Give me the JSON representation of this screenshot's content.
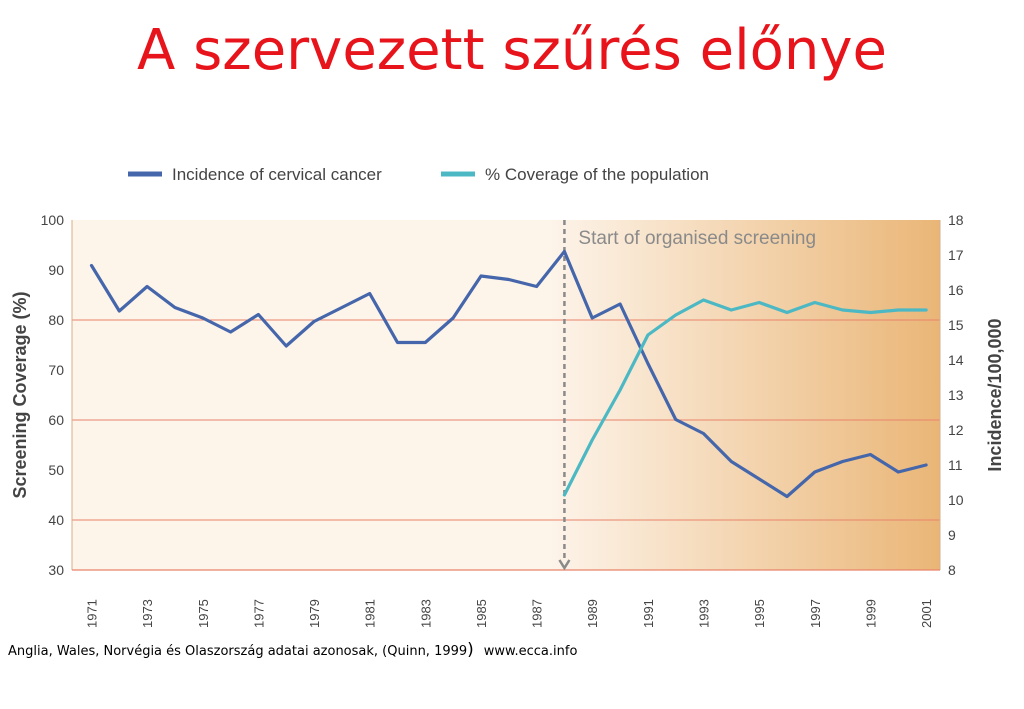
{
  "title": "A szervezett szűrés előnye",
  "footer": {
    "source_text": "Anglia, Wales, Norvégia és Olaszország  adatai azonosak, (Quinn, 1999",
    "paren": ")",
    "url": "www.ecca.info"
  },
  "chart_data": {
    "type": "line",
    "annotation": "Start of organised screening",
    "annotation_x": 1988,
    "xlim": [
      1970.3,
      2001.5
    ],
    "x_ticks": [
      "1971",
      "1973",
      "1975",
      "1977",
      "1979",
      "1981",
      "1983",
      "1985",
      "1987",
      "1989",
      "1991",
      "1993",
      "1995",
      "1997",
      "1999",
      "2001"
    ],
    "left_axis": {
      "label": "Screening Coverage (%)",
      "lim": [
        30,
        100
      ],
      "ticks": [
        "30",
        "40",
        "50",
        "60",
        "70",
        "80",
        "90",
        "100"
      ]
    },
    "right_axis": {
      "label": "Incidence/100,000",
      "lim": [
        8,
        18
      ],
      "ticks": [
        "8",
        "9",
        "10",
        "11",
        "12",
        "13",
        "14",
        "15",
        "16",
        "17",
        "18"
      ]
    },
    "grid_values": [
      40,
      60,
      80
    ],
    "legend_position": "top",
    "colors": {
      "incidence": "#4566ab",
      "coverage": "#4cb8c4",
      "grid": "#e9836a",
      "bg_light": "#fdf4ea",
      "bg_dark": "#eab677"
    },
    "series": [
      {
        "name": "Incidence of cervical cancer",
        "axis": "right",
        "x": [
          1971,
          1972,
          1973,
          1974,
          1975,
          1976,
          1977,
          1978,
          1979,
          1980,
          1981,
          1982,
          1983,
          1984,
          1985,
          1986,
          1987,
          1988,
          1989,
          1990,
          1991,
          1992,
          1993,
          1994,
          1995,
          1996,
          1997,
          1998,
          1999,
          2000,
          2001
        ],
        "values": [
          16.7,
          15.4,
          16.1,
          15.5,
          15.2,
          14.8,
          15.3,
          14.4,
          15.1,
          15.5,
          15.9,
          14.5,
          14.5,
          15.2,
          16.4,
          16.3,
          16.1,
          17.1,
          15.2,
          15.6,
          13.9,
          12.3,
          11.9,
          11.1,
          10.6,
          10.1,
          10.8,
          11.1,
          11.3,
          10.8,
          11.0
        ]
      },
      {
        "name": "% Coverage of the population",
        "axis": "left",
        "x": [
          1988,
          1989,
          1990,
          1991,
          1992,
          1993,
          1994,
          1995,
          1996,
          1997,
          1998,
          1999,
          2000,
          2001
        ],
        "values": [
          45,
          56,
          66,
          77,
          81,
          84,
          82,
          83.5,
          81.5,
          83.5,
          82,
          81.5,
          82,
          82
        ]
      }
    ]
  }
}
